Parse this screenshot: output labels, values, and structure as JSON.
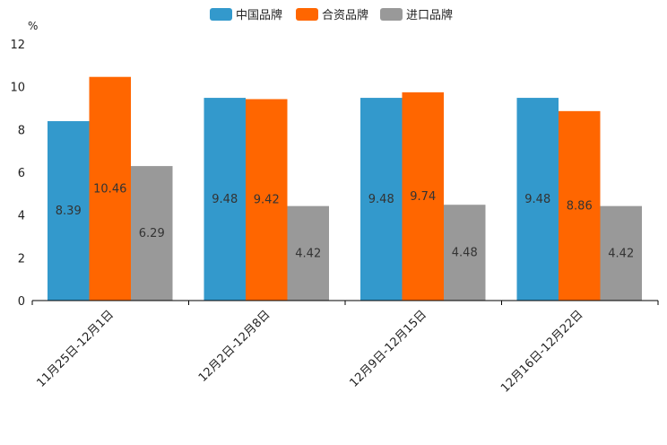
{
  "chart_data": {
    "type": "bar",
    "unit": "%",
    "categories": [
      "11月25日-12月1日",
      "12月2日-12月8日",
      "12月9日-12月15日",
      "12月16日-12月22日"
    ],
    "series": [
      {
        "name": "中国品牌",
        "color": "#3399cc",
        "values": [
          8.39,
          9.48,
          9.48,
          9.48
        ]
      },
      {
        "name": "合资品牌",
        "color": "#ff6600",
        "values": [
          10.46,
          9.42,
          9.74,
          8.86
        ]
      },
      {
        "name": "进口品牌",
        "color": "#999999",
        "values": [
          6.29,
          4.42,
          4.48,
          4.42
        ]
      }
    ],
    "ylim": [
      0,
      12
    ],
    "yticks": [
      0,
      2,
      4,
      6,
      8,
      10,
      12
    ],
    "legend_position": "top-center",
    "grid": false
  }
}
